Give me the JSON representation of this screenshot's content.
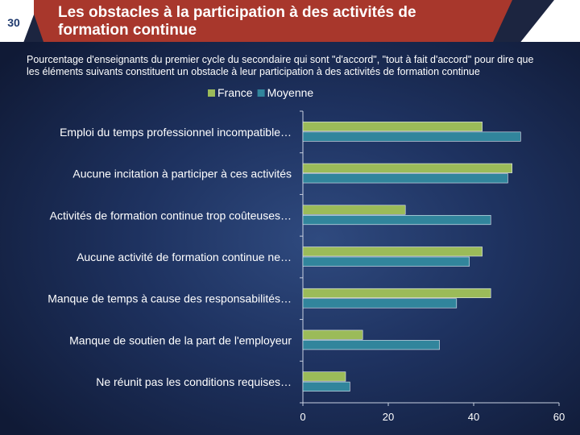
{
  "slide": {
    "number": "30",
    "title": "Les obstacles à la participation à des activités de formation continue",
    "subtitle": "Pourcentage d'enseignants du premier cycle du secondaire qui sont  \"d'accord\", \"tout à fait d'accord\" pour dire que les éléments suivants constituent un obstacle à leur participation à des activités de formation continue"
  },
  "colors": {
    "france": "#9bbb59",
    "moyenne": "#31859c",
    "header_red": "#a8372c"
  },
  "chart_data": {
    "type": "bar",
    "orientation": "horizontal",
    "categories": [
      "Emploi du temps professionnel incompatible…",
      "Aucune incitation à participer à ces activités",
      "Activités de formation continue trop coûteuses…",
      "Aucune activité de formation continue ne…",
      "Manque de temps à cause des responsabilités…",
      "Manque de soutien de la part de l'employeur",
      "Ne réunit pas les conditions requises…"
    ],
    "series": [
      {
        "name": "France",
        "values": [
          42,
          49,
          24,
          42,
          44,
          14,
          10
        ]
      },
      {
        "name": "Moyenne",
        "values": [
          51,
          48,
          44,
          39,
          36,
          32,
          11
        ]
      }
    ],
    "xlim": [
      0,
      60
    ],
    "xticks": [
      "0",
      "20",
      "40",
      "60"
    ],
    "legend": [
      "France",
      "Moyenne"
    ],
    "legend_position": "top"
  }
}
